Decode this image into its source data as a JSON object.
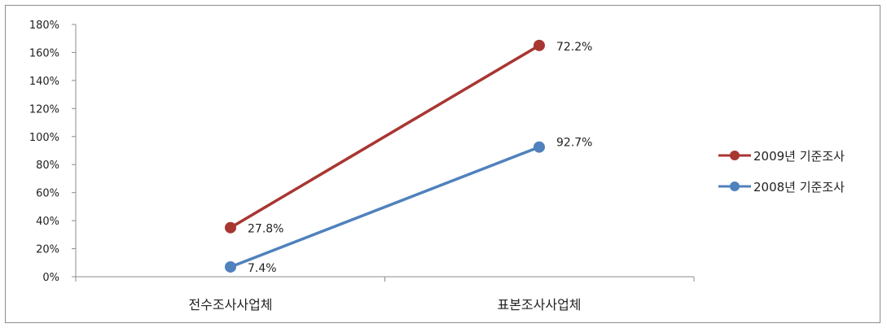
{
  "chart_data": {
    "type": "line",
    "categories": [
      "전수조사사업체",
      "표본조사사업체"
    ],
    "y_ticks": [
      "0%",
      "20%",
      "40%",
      "60%",
      "80%",
      "100%",
      "120%",
      "140%",
      "160%",
      "180%"
    ],
    "ylim": [
      0,
      180
    ],
    "grid": false,
    "legend_position": "right",
    "series": [
      {
        "name": "2009년 기준조사",
        "color": "#a83632",
        "values": [
          35,
          165
        ],
        "labels": [
          "27.8%",
          "72.2%"
        ]
      },
      {
        "name": "2008년 기준조사",
        "color": "#4f81bd",
        "values": [
          7,
          92.5
        ],
        "labels": [
          "7.4%",
          "92.7%"
        ]
      }
    ]
  }
}
